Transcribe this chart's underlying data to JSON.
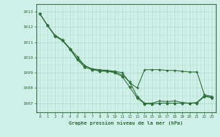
{
  "title": "Graphe pression niveau de la mer (hPa)",
  "background_color": "#cff0e8",
  "grid_color": "#aaddcc",
  "line_color": "#2d6e3a",
  "xlim": [
    -0.5,
    23.5
  ],
  "ylim": [
    1006.4,
    1013.3
  ],
  "yticks": [
    1007,
    1008,
    1009,
    1010,
    1011,
    1012,
    1013
  ],
  "xticks": [
    0,
    1,
    2,
    3,
    4,
    5,
    6,
    7,
    8,
    9,
    10,
    11,
    12,
    13,
    14,
    15,
    16,
    17,
    18,
    19,
    20,
    21,
    22,
    23
  ],
  "series1": [
    1012.85,
    1012.1,
    1011.45,
    1011.15,
    1010.55,
    1009.9,
    1009.45,
    1009.25,
    1009.15,
    1009.1,
    1009.05,
    1008.85,
    1008.4,
    1007.45,
    1007.0,
    1007.0,
    1007.15,
    1007.1,
    1007.15,
    1007.05,
    1007.0,
    1007.05,
    1007.5,
    1007.4
  ],
  "series2": [
    1012.85,
    1012.1,
    1011.4,
    1011.1,
    1010.55,
    1009.85,
    1009.35,
    1009.2,
    1009.1,
    1009.1,
    1009.0,
    1008.75,
    1008.05,
    1007.35,
    1006.95,
    1006.95,
    1007.0,
    1007.0,
    1007.0,
    1007.0,
    1007.0,
    1007.0,
    1007.45,
    1007.35
  ],
  "series3": [
    1012.85,
    1012.1,
    1011.45,
    1011.15,
    1010.6,
    1010.05,
    1009.45,
    1009.25,
    1009.2,
    1009.15,
    1009.1,
    1009.0,
    1008.35,
    1008.0,
    1009.2,
    1009.2,
    1009.2,
    1009.15,
    1009.15,
    1009.1,
    1009.05,
    1009.05,
    1007.55,
    1007.45
  ]
}
